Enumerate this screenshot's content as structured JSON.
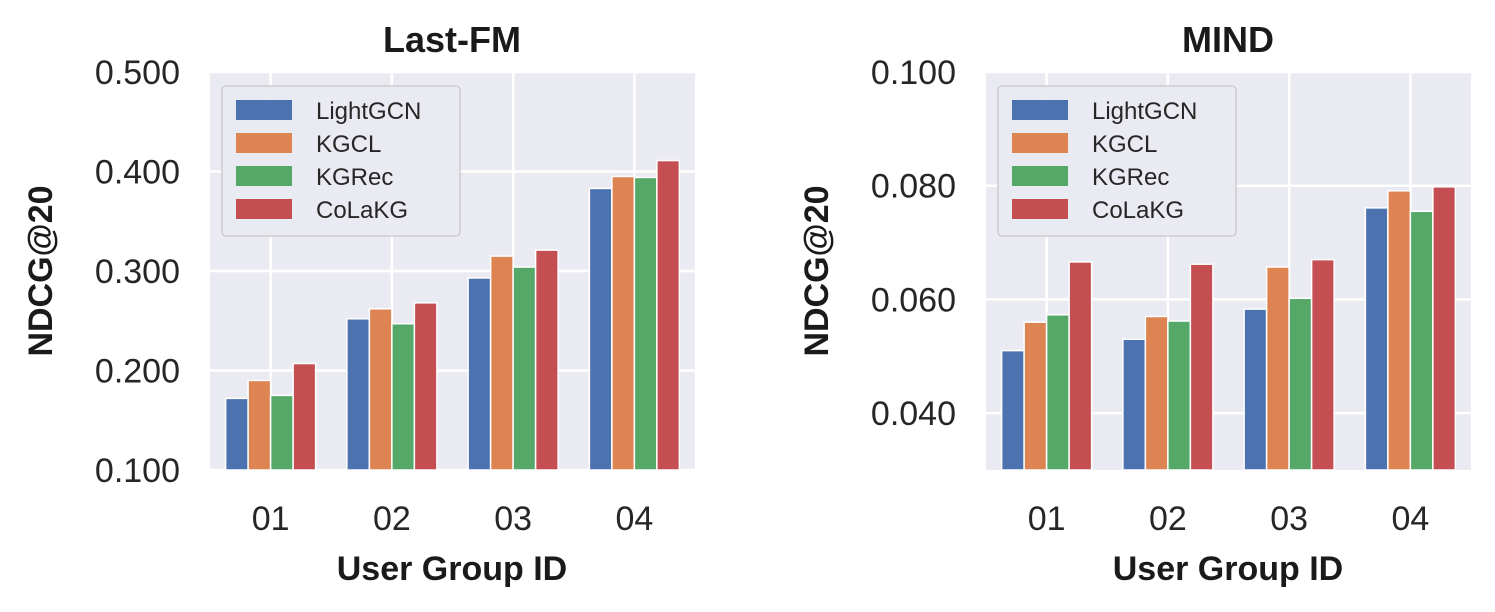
{
  "chart_data": [
    {
      "type": "bar",
      "title": "Last-FM",
      "xlabel": "User Group ID",
      "ylabel": "NDCG@20",
      "categories": [
        "01",
        "02",
        "03",
        "04"
      ],
      "ylim": [
        0.1,
        0.5
      ],
      "yticks": [
        0.1,
        0.2,
        0.3,
        0.4,
        0.5
      ],
      "ytick_labels": [
        "0.100",
        "0.200",
        "0.300",
        "0.400",
        "0.500"
      ],
      "grid": true,
      "legend_position": "upper-left",
      "series": [
        {
          "name": "LightGCN",
          "color": "#4c72b0",
          "values": [
            0.172,
            0.252,
            0.293,
            0.383
          ]
        },
        {
          "name": "KGCL",
          "color": "#dd8452",
          "values": [
            0.19,
            0.262,
            0.315,
            0.395
          ]
        },
        {
          "name": "KGRec",
          "color": "#55a868",
          "values": [
            0.175,
            0.247,
            0.304,
            0.394
          ]
        },
        {
          "name": "CoLaKG",
          "color": "#c44e52",
          "values": [
            0.207,
            0.268,
            0.321,
            0.411
          ]
        }
      ]
    },
    {
      "type": "bar",
      "title": "MIND",
      "xlabel": "User Group ID",
      "ylabel": "NDCG@20",
      "categories": [
        "01",
        "02",
        "03",
        "04"
      ],
      "ylim": [
        0.03,
        0.1
      ],
      "yticks": [
        0.04,
        0.06,
        0.08,
        0.1
      ],
      "ytick_labels": [
        "0.040",
        "0.060",
        "0.080",
        "0.100"
      ],
      "grid": true,
      "legend_position": "upper-left",
      "series": [
        {
          "name": "LightGCN",
          "color": "#4c72b0",
          "values": [
            0.051,
            0.053,
            0.0583,
            0.0761
          ]
        },
        {
          "name": "KGCL",
          "color": "#dd8452",
          "values": [
            0.056,
            0.057,
            0.0657,
            0.0791
          ]
        },
        {
          "name": "KGRec",
          "color": "#55a868",
          "values": [
            0.0573,
            0.0562,
            0.0602,
            0.0755
          ]
        },
        {
          "name": "CoLaKG",
          "color": "#c44e52",
          "values": [
            0.0666,
            0.0662,
            0.067,
            0.0798
          ]
        }
      ]
    }
  ]
}
